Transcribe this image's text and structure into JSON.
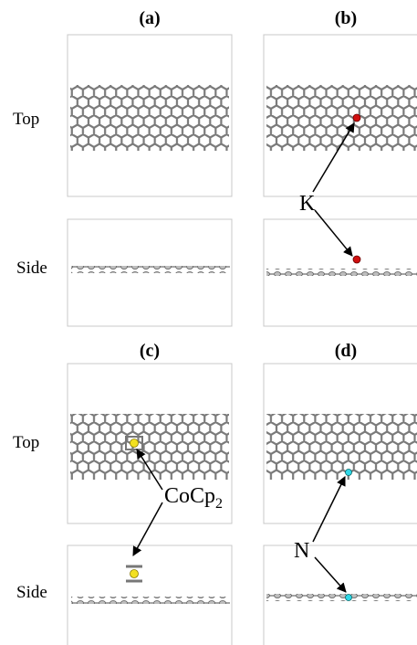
{
  "panels": [
    {
      "label": "(a)",
      "top": "Top",
      "side": "Side"
    },
    {
      "label": "(b)"
    },
    {
      "label": "(c)",
      "top": "Top",
      "side": "Side"
    },
    {
      "label": "(d)"
    }
  ],
  "annotations": {
    "k": "K",
    "cocp2": "CoCp",
    "cocp2_subscript": "2",
    "n": "N"
  }
}
